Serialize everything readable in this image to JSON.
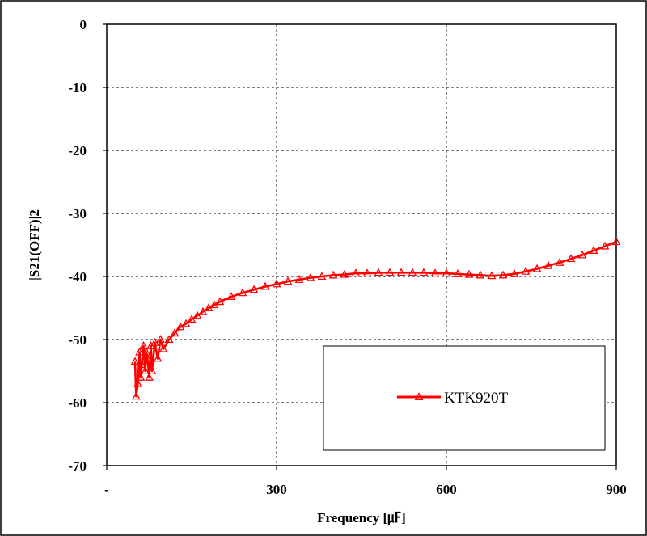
{
  "chart_data": {
    "type": "line",
    "xlabel": "Frequency [㎌]",
    "ylabel": "|S21(OFF)|2",
    "xlim": [
      0,
      900
    ],
    "ylim": [
      -70,
      0
    ],
    "x_ticks": [
      0,
      300,
      600,
      900
    ],
    "x_tick_labels": [
      "-",
      "300",
      "600",
      "900"
    ],
    "y_ticks": [
      0,
      -10,
      -20,
      -30,
      -40,
      -50,
      -60,
      -70
    ],
    "y_tick_labels": [
      "0",
      "-10",
      "-20",
      "-30",
      "-40",
      "-50",
      "-60",
      "-70"
    ],
    "grid": true,
    "legend": "bottom-right",
    "series": [
      {
        "name": "KTK920T",
        "color": "#ff0000",
        "marker": "triangle",
        "x": [
          50,
          52,
          55,
          58,
          60,
          62,
          65,
          68,
          70,
          72,
          75,
          78,
          80,
          85,
          90,
          95,
          100,
          110,
          120,
          130,
          140,
          150,
          160,
          170,
          180,
          190,
          200,
          220,
          240,
          260,
          280,
          300,
          320,
          340,
          360,
          380,
          400,
          420,
          440,
          460,
          480,
          500,
          520,
          540,
          560,
          580,
          600,
          620,
          640,
          660,
          680,
          700,
          720,
          740,
          760,
          780,
          800,
          820,
          840,
          860,
          880,
          900
        ],
        "y": [
          -53.5,
          -59,
          -57,
          -52,
          -56,
          -54,
          -51,
          -55,
          -52,
          -53,
          -56,
          -51,
          -55,
          -50.5,
          -53,
          -50,
          -51.5,
          -50,
          -49,
          -48,
          -47.5,
          -46.8,
          -46.2,
          -45.6,
          -45,
          -44.5,
          -44,
          -43.2,
          -42.6,
          -42.1,
          -41.6,
          -41.2,
          -40.8,
          -40.5,
          -40.2,
          -40,
          -39.8,
          -39.7,
          -39.5,
          -39.5,
          -39.4,
          -39.4,
          -39.4,
          -39.4,
          -39.4,
          -39.5,
          -39.5,
          -39.6,
          -39.7,
          -39.8,
          -39.9,
          -39.8,
          -39.6,
          -39.2,
          -38.8,
          -38.3,
          -37.8,
          -37.2,
          -36.6,
          -35.9,
          -35.2,
          -34.5
        ]
      }
    ]
  }
}
